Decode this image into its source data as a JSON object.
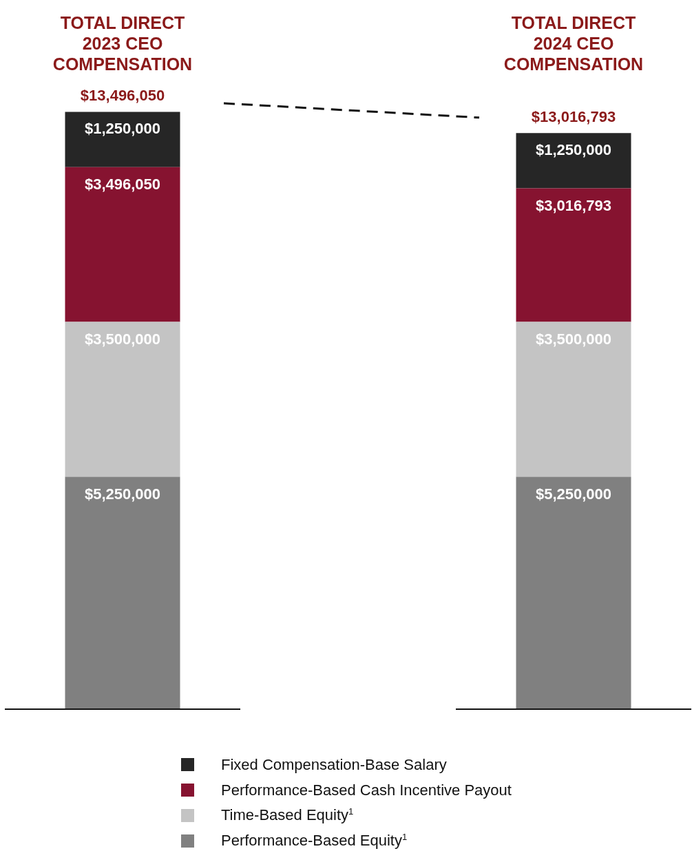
{
  "chart_data": {
    "type": "bar",
    "stacked": true,
    "legend": "bottom",
    "tick_labels": "x",
    "grid": false,
    "categories": [
      "TOTAL DIRECT 2023 CEO COMPENSATION",
      "TOTAL DIRECT 2024 CEO COMPENSATION"
    ],
    "series": [
      {
        "name": "Performance-Based Equity$^{1}$",
        "color": "#808080",
        "values": [
          5250000,
          5250000
        ],
        "value_labels": [
          "$5,250,000",
          "$5,250,000"
        ]
      },
      {
        "name": "Time-Based Equity$^{1}$",
        "color": "#c4c4c4",
        "values": [
          3500000,
          3500000
        ],
        "value_labels": [
          "$3,500,000",
          "$3,500,000"
        ]
      },
      {
        "name": "Performance-Based Cash Incentive Payout",
        "color": "#861330",
        "values": [
          3496050,
          3016793
        ],
        "value_labels": [
          "$3,496,050",
          "$3,016,793"
        ]
      },
      {
        "name": "Fixed Compensation-Base Salary",
        "color": "#262626",
        "values": [
          1250000,
          1250000
        ],
        "value_labels": [
          "$1,250,000",
          "$1,250,000"
        ]
      }
    ],
    "totals": [
      "$13,496,050",
      "$13,016,793"
    ]
  }
}
